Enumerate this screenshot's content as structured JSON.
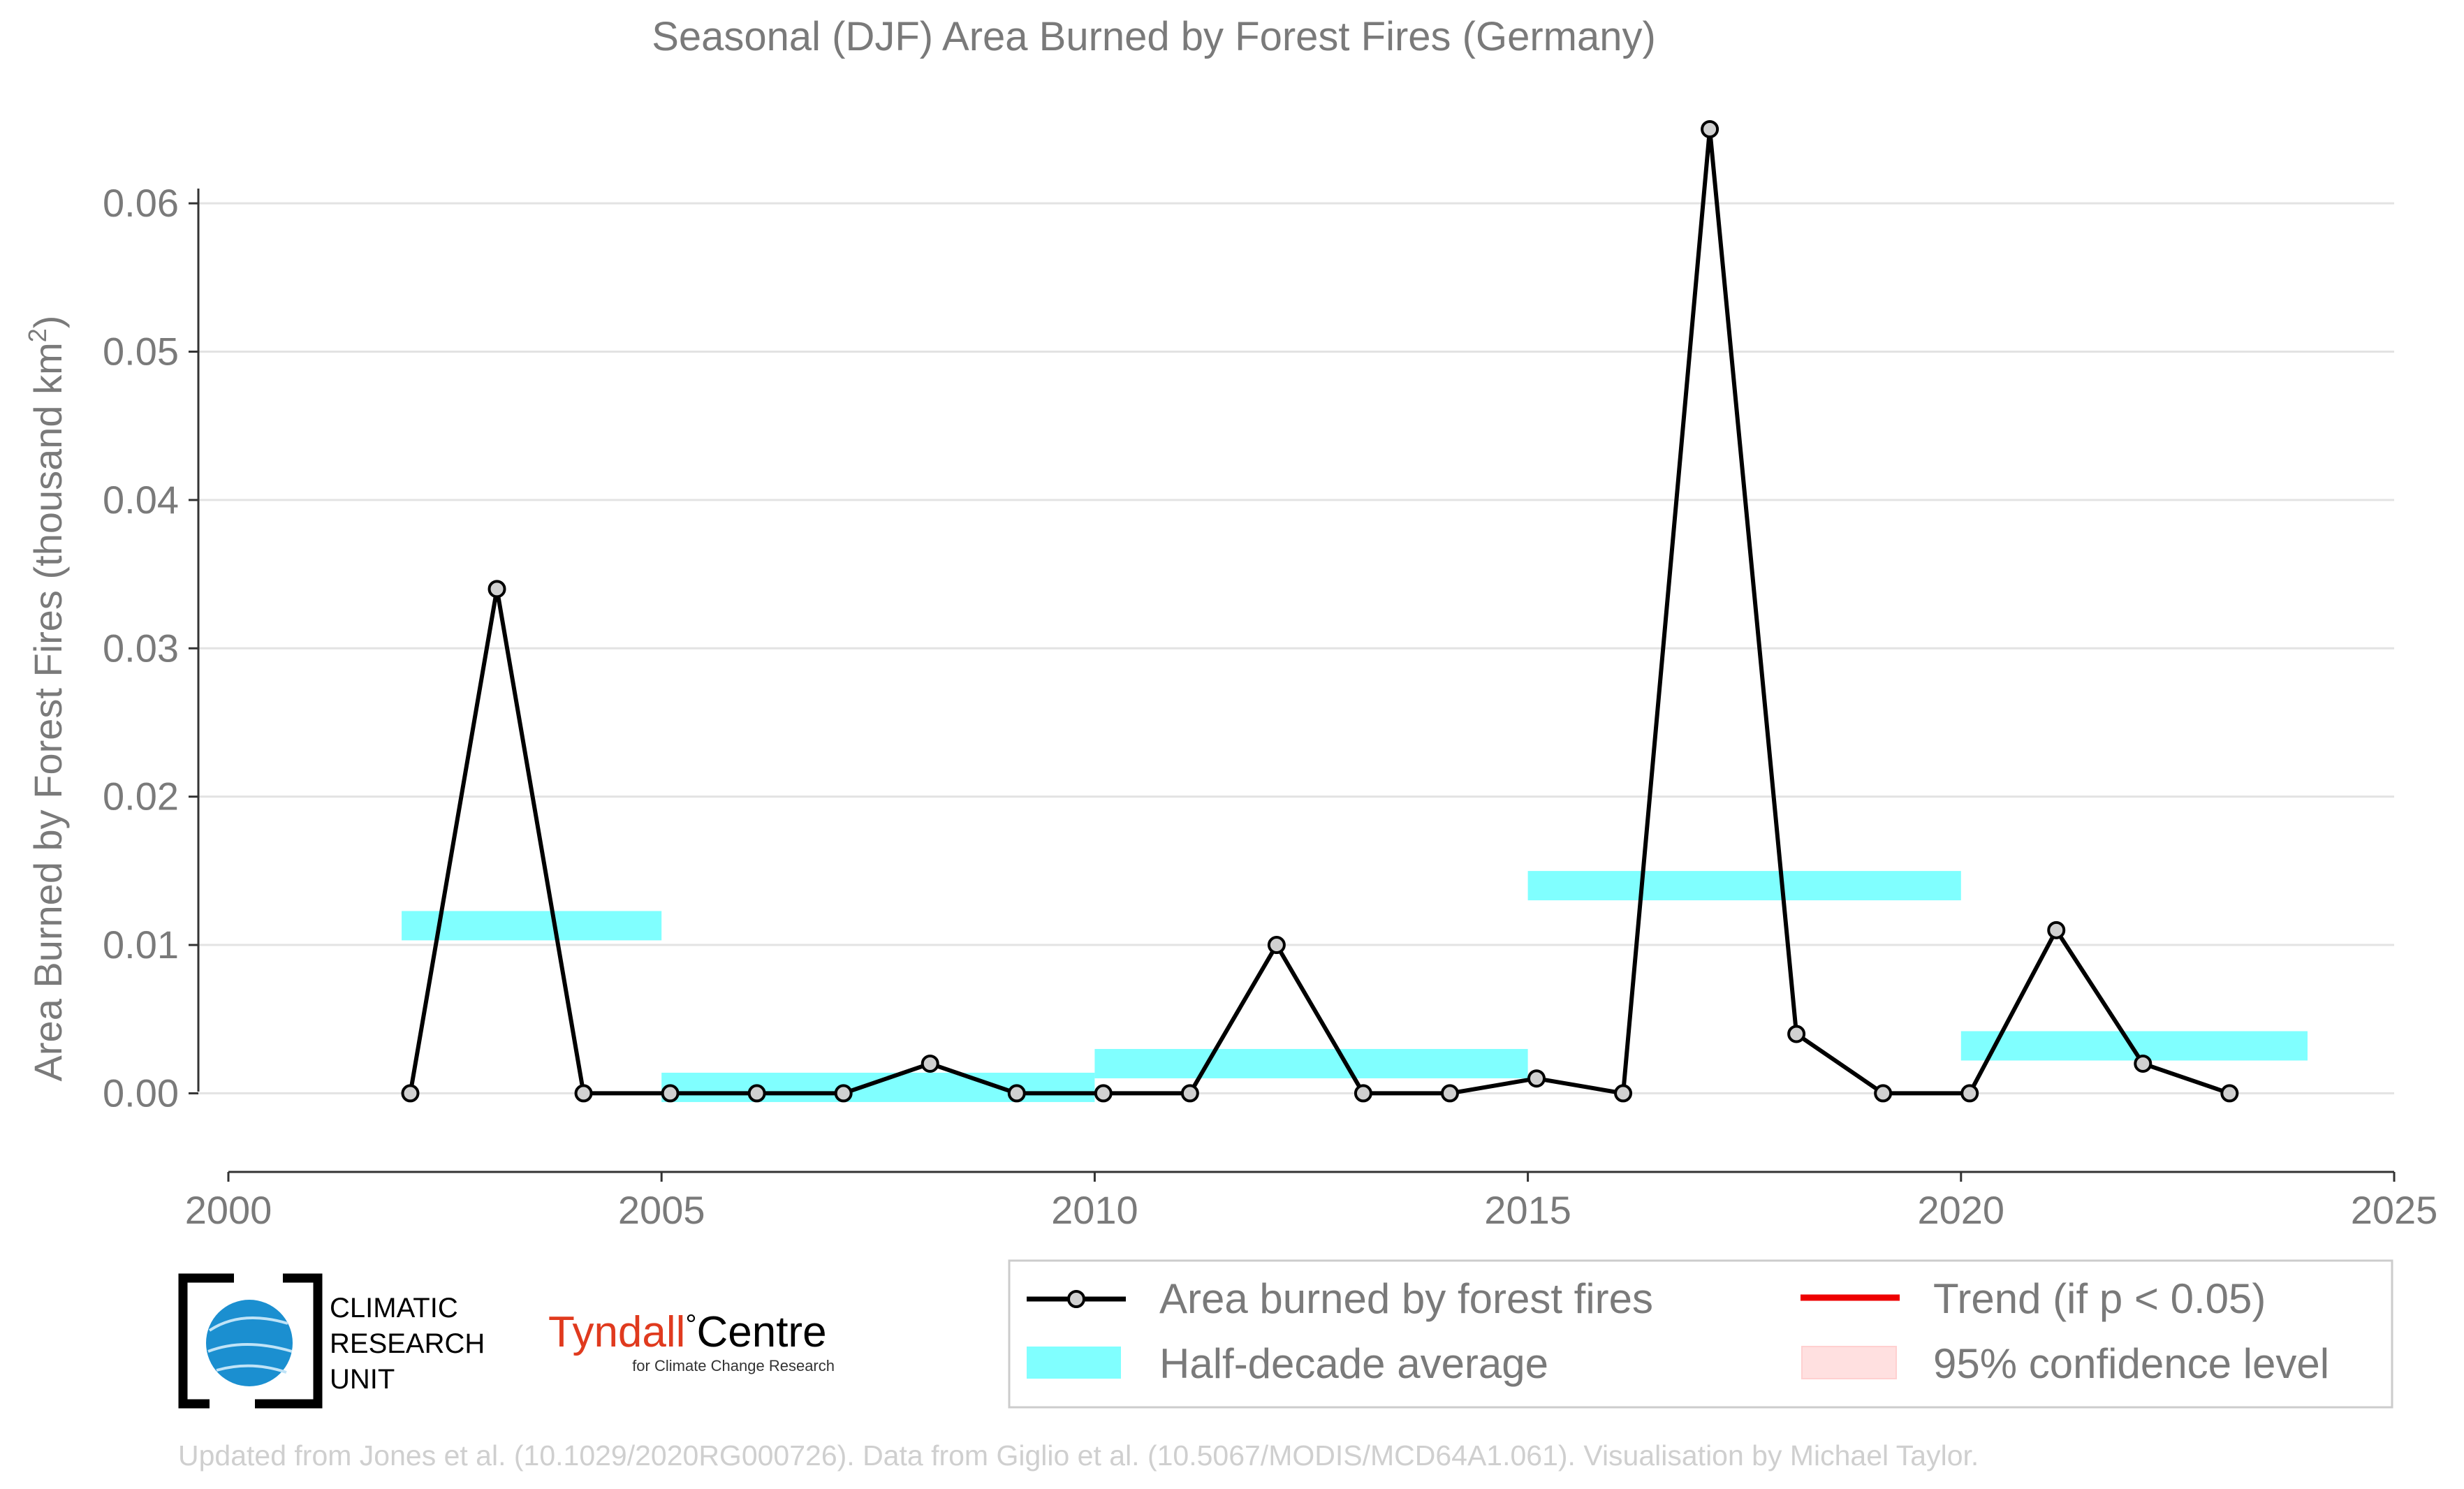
{
  "chart_data": {
    "type": "line",
    "title": "Seasonal (DJF) Area Burned by Forest Fires (Germany)",
    "ylabel": "Area Burned by Forest Fires (thousand km",
    "ylabel_superscript": "2",
    "ylabel_close": ")",
    "xlabel": "",
    "xlim": [
      2000,
      2025
    ],
    "ylim": [
      -0.0053,
      0.069
    ],
    "x_ticks": [
      "2000",
      "2005",
      "2010",
      "2015",
      "2020",
      "2025"
    ],
    "y_ticks": [
      "0.00",
      "0.01",
      "0.02",
      "0.03",
      "0.04",
      "0.05",
      "0.06"
    ],
    "grid": true,
    "series": [
      {
        "name": "Area burned by forest fires",
        "color": "#000000",
        "marker_fill": "#d0d0d0",
        "x": [
          2002.1,
          2003.1,
          2004.1,
          2005.1,
          2006.1,
          2007.1,
          2008.1,
          2009.1,
          2010.1,
          2011.1,
          2012.1,
          2013.1,
          2014.1,
          2015.1,
          2016.1,
          2017.1,
          2018.1,
          2019.1,
          2020.1,
          2021.1,
          2022.1,
          2023.1
        ],
        "y": [
          0.0,
          0.034,
          0.0,
          0.0,
          0.0,
          0.0,
          0.002,
          0.0,
          0.0,
          0.0,
          0.01,
          0.0,
          0.0,
          0.001,
          0.0,
          0.065,
          0.004,
          0.0,
          0.0,
          0.011,
          0.002,
          0.0
        ]
      }
    ],
    "half_decade_averages": {
      "name": "Half-decade average",
      "color": "#80ffff",
      "bars": [
        {
          "x_start": 2002.0,
          "x_end": 2005.0,
          "value": 0.0113
        },
        {
          "x_start": 2005.0,
          "x_end": 2010.0,
          "value": 0.0004
        },
        {
          "x_start": 2010.0,
          "x_end": 2015.0,
          "value": 0.002
        },
        {
          "x_start": 2015.0,
          "x_end": 2020.0,
          "value": 0.014
        },
        {
          "x_start": 2020.0,
          "x_end": 2024.0,
          "value": 0.0032
        }
      ]
    },
    "legend": {
      "placement": "bottom-right",
      "entries": [
        {
          "label": "Area burned by forest fires",
          "kind": "line-marker",
          "color": "#000000"
        },
        {
          "label": "Trend (if p < 0.05)",
          "kind": "line",
          "color": "#ee0000"
        },
        {
          "label": "Half-decade average",
          "kind": "band",
          "color": "#80ffff"
        },
        {
          "label": "95% confidence level",
          "kind": "band",
          "color": "#ffe0e0"
        }
      ]
    }
  },
  "logos": {
    "cru_lines": [
      "CLIMATIC",
      "RESEARCH",
      "UNIT"
    ],
    "tyndall_main": "Tyndall",
    "tyndall_degree": "°",
    "tyndall_centre": "Centre",
    "tyndall_sub": "for Climate Change Research",
    "tyndall_color": "#e03a1e"
  },
  "footer": "Updated from Jones et al. (10.1029/2020RG000726). Data from Giglio et al. (10.5067/MODIS/MCD64A1.061). Visualisation by Michael Taylor."
}
